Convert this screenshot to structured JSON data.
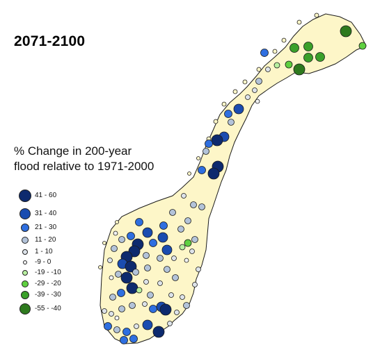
{
  "title": "2071-2100",
  "legend_title_lines": [
    "% Change in 200-year",
    "flood relative to 1971-2000"
  ],
  "colors": {
    "land": "#fdf6c8",
    "coast": "#1a1a1a",
    "41 - 60": "#0d2a6e",
    "31 - 40": "#1a4cb0",
    "21 - 30": "#2f6fe0",
    "11 - 20": "#b3c3d9",
    "1 - 10": "#dde3ea",
    "-9 - 0": "#f2f3f4",
    "-19 - -10": "#b8f0a0",
    "-29 - -20": "#5fd040",
    "-39 - -30": "#3aa02a",
    "-55 - -40": "#2e7a1e"
  },
  "legend": [
    {
      "label": "41 - 60",
      "class": "41-60"
    },
    {
      "label": "31 - 40",
      "class": "31-40"
    },
    {
      "label": "21 - 30",
      "class": "21-30"
    },
    {
      "label": "11 - 20",
      "class": "11-20"
    },
    {
      "label": "1 - 10",
      "class": "1-10"
    },
    {
      "label": "-9 - 0",
      "class": "-9-0"
    },
    {
      "label": "-19 - -10",
      "class": "-19--10"
    },
    {
      "label": "-29 - -20",
      "class": "-29--20"
    },
    {
      "label": "-39 - -30",
      "class": "-39--30"
    },
    {
      "label": "-55 - -40",
      "class": "-55--40"
    }
  ]
}
